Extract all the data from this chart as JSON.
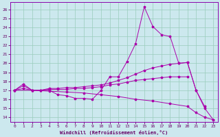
{
  "xlabel": "Windchill (Refroidissement éolien,°C)",
  "background_color": "#cce8ee",
  "grid_color": "#99ccbb",
  "line_color": "#aa00aa",
  "xlim": [
    -0.5,
    23.5
  ],
  "ylim": [
    13.5,
    26.8
  ],
  "yticks": [
    14,
    15,
    16,
    17,
    18,
    19,
    20,
    21,
    22,
    23,
    24,
    25,
    26
  ],
  "xticks": [
    0,
    1,
    2,
    3,
    4,
    5,
    6,
    7,
    8,
    9,
    10,
    11,
    12,
    13,
    14,
    15,
    16,
    17,
    18,
    19,
    20,
    21,
    22,
    23
  ],
  "series1": [
    [
      0,
      17
    ],
    [
      1,
      17.7
    ],
    [
      2,
      17
    ],
    [
      3,
      17
    ],
    [
      4,
      17
    ],
    [
      5,
      16.5
    ],
    [
      6,
      16.4
    ],
    [
      7,
      16.1
    ],
    [
      8,
      16.1
    ],
    [
      9,
      16.0
    ],
    [
      10,
      17.0
    ],
    [
      11,
      18.5
    ],
    [
      12,
      18.5
    ],
    [
      13,
      20.2
    ],
    [
      14,
      22.2
    ],
    [
      15,
      26.3
    ],
    [
      16,
      24.1
    ],
    [
      17,
      23.2
    ],
    [
      18,
      23.0
    ],
    [
      19,
      20.0
    ],
    [
      20,
      20.1
    ],
    [
      21,
      17.0
    ],
    [
      22,
      15.0
    ],
    [
      23,
      13.7
    ]
  ],
  "series2": [
    [
      0,
      17
    ],
    [
      1,
      17.5
    ],
    [
      2,
      17.0
    ],
    [
      3,
      17.0
    ],
    [
      4,
      17.2
    ],
    [
      5,
      17.2
    ],
    [
      6,
      17.3
    ],
    [
      7,
      17.3
    ],
    [
      8,
      17.4
    ],
    [
      9,
      17.5
    ],
    [
      10,
      17.6
    ],
    [
      11,
      17.8
    ],
    [
      12,
      18.1
    ],
    [
      13,
      18.4
    ],
    [
      14,
      18.8
    ],
    [
      15,
      19.2
    ],
    [
      16,
      19.5
    ],
    [
      17,
      19.7
    ],
    [
      18,
      19.9
    ],
    [
      19,
      20.0
    ],
    [
      20,
      20.1
    ],
    [
      21,
      17.0
    ],
    [
      22,
      15.2
    ]
  ],
  "series3": [
    [
      0,
      17
    ],
    [
      1,
      17.2
    ],
    [
      2,
      17.0
    ],
    [
      3,
      17.0
    ],
    [
      4,
      17.1
    ],
    [
      5,
      17.1
    ],
    [
      6,
      17.1
    ],
    [
      7,
      17.2
    ],
    [
      8,
      17.2
    ],
    [
      9,
      17.3
    ],
    [
      10,
      17.4
    ],
    [
      11,
      17.6
    ],
    [
      12,
      17.7
    ],
    [
      13,
      17.9
    ],
    [
      14,
      18.1
    ],
    [
      15,
      18.2
    ],
    [
      16,
      18.3
    ],
    [
      17,
      18.4
    ],
    [
      18,
      18.5
    ],
    [
      19,
      18.5
    ],
    [
      20,
      18.5
    ]
  ],
  "series4": [
    [
      0,
      17
    ],
    [
      2,
      17
    ],
    [
      4,
      16.9
    ],
    [
      6,
      16.8
    ],
    [
      8,
      16.7
    ],
    [
      10,
      16.5
    ],
    [
      12,
      16.3
    ],
    [
      14,
      16.0
    ],
    [
      16,
      15.8
    ],
    [
      18,
      15.5
    ],
    [
      20,
      15.2
    ],
    [
      21,
      14.5
    ],
    [
      22,
      14.0
    ],
    [
      23,
      13.7
    ]
  ]
}
